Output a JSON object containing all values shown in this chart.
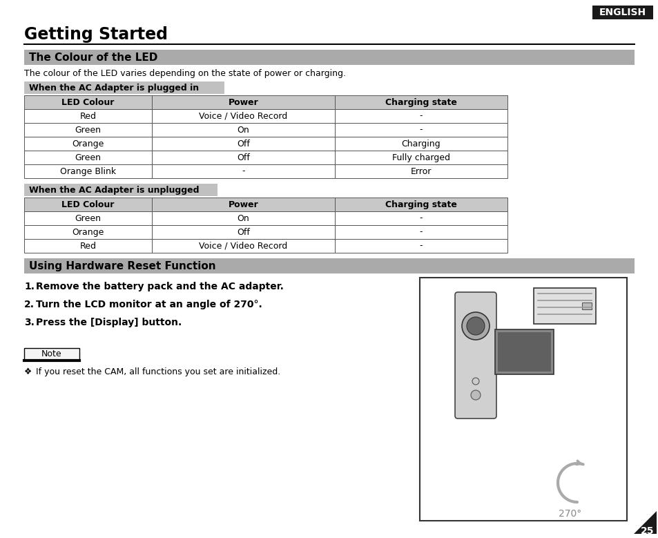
{
  "page_bg": "#ffffff",
  "english_badge_bg": "#1a1a1a",
  "english_badge_text": "ENGLISH",
  "english_badge_color": "#ffffff",
  "title": "Getting Started",
  "section1_bg": "#aaaaaa",
  "section1_text": "The Colour of the LED",
  "section2_bg": "#aaaaaa",
  "section2_text": "Using Hardware Reset Function",
  "intro_text": "The colour of the LED varies depending on the state of power or charging.",
  "subsection1_bg": "#c0c0c0",
  "subsection1_text": "When the AC Adapter is plugged in",
  "subsection2_bg": "#c0c0c0",
  "subsection2_text": "When the AC Adapter is unplugged",
  "table1_headers": [
    "LED Colour",
    "Power",
    "Charging state"
  ],
  "table1_rows": [
    [
      "Red",
      "Voice / Video Record",
      "-"
    ],
    [
      "Green",
      "On",
      "-"
    ],
    [
      "Orange",
      "Off",
      "Charging"
    ],
    [
      "Green",
      "Off",
      "Fully charged"
    ],
    [
      "Orange Blink",
      "-",
      "Error"
    ]
  ],
  "table2_headers": [
    "LED Colour",
    "Power",
    "Charging state"
  ],
  "table2_rows": [
    [
      "Green",
      "On",
      "-"
    ],
    [
      "Orange",
      "Off",
      "-"
    ],
    [
      "Red",
      "Voice / Video Record",
      "-"
    ]
  ],
  "steps": [
    "Remove the battery pack and the AC adapter.",
    "Turn the LCD monitor at an angle of 270°.",
    "Press the [Display] button."
  ],
  "note_text": "Note",
  "note_bullet": "If you reset the CAM, all functions you set are initialized.",
  "page_number": "25",
  "table_header_bg": "#c8c8c8",
  "table_border": "#555555",
  "table_row_bg": "#ffffff"
}
